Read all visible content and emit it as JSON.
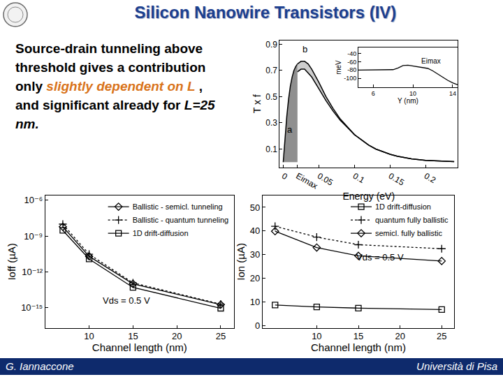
{
  "slide": {
    "title": "Silicon Nanowire Transistors (IV)",
    "body": [
      {
        "text": "Source-drain tunneling above threshold gives a contribution only "
      },
      {
        "text": "slightly dependent on L",
        "style": "emphasis"
      },
      {
        "text": " , and significant already for "
      },
      {
        "text": "L=25 nm.",
        "style": "italic"
      }
    ],
    "footer_left": "G. Iannaccone",
    "footer_right": "Università di Pisa"
  },
  "chart_data": [
    {
      "type": "area",
      "x_label": "Energy (eV)",
      "y_label": "T x f",
      "x": [
        0,
        0.0025,
        0.005,
        0.0075,
        0.01,
        0.0125,
        0.015,
        0.0175,
        0.02,
        0.025,
        0.03,
        0.035,
        0.04,
        0.05,
        0.06,
        0.07,
        0.08,
        0.09,
        0.1,
        0.11,
        0.12,
        0.13,
        0.14,
        0.15,
        0.16,
        0.18,
        0.2,
        0.22,
        0.24
      ],
      "series": [
        {
          "color": "#000000",
          "values": [
            0,
            0.2,
            0.35,
            0.48,
            0.58,
            0.65,
            0.7,
            0.73,
            0.75,
            0.77,
            0.77,
            0.75,
            0.71,
            0.61,
            0.5,
            0.41,
            0.33,
            0.27,
            0.21,
            0.17,
            0.13,
            0.1,
            0.08,
            0.06,
            0.045,
            0.025,
            0.014,
            0.008,
            0.004
          ]
        },
        {
          "color": "#000000",
          "values": [
            null,
            null,
            null,
            null,
            null,
            null,
            null,
            null,
            0.69,
            0.71,
            0.71,
            0.68,
            0.65,
            0.56,
            0.47,
            0.39,
            0.32,
            0.265,
            0.21,
            0.17,
            0.13,
            0.1,
            0.08,
            0.06,
            0.045,
            0.025,
            0.014,
            0.008,
            0.004
          ]
        }
      ],
      "xlim": [
        -0.005,
        0.245
      ],
      "ylim": [
        -0.04,
        0.93
      ],
      "xticks": [
        0,
        {
          "value": 0.02,
          "label": "Eimax"
        },
        0.05,
        0.1,
        0.15,
        0.2
      ],
      "yticks": [
        0.1,
        0.3,
        0.5,
        0.7,
        0.9
      ],
      "grid": false,
      "annotations": [
        "a",
        "b"
      ]
    },
    {
      "type": "line",
      "x_label": "Y (nm)",
      "y_label": "meV",
      "x": [
        4.5,
        6,
        7,
        8,
        8.5,
        9,
        9.5,
        10,
        10.5,
        11,
        11.5,
        12,
        12.5,
        13,
        13.5,
        14,
        14.5
      ],
      "values": [
        -80,
        -80,
        -80,
        -79,
        -75,
        -69,
        -68,
        -70,
        -72,
        -73,
        -76,
        -82,
        -90,
        -98,
        -105,
        -111,
        -116
      ],
      "color": "#000000",
      "xlim": [
        4.5,
        14.5
      ],
      "ylim": [
        -122,
        -25
      ],
      "xticks": [
        6,
        10,
        14
      ],
      "yticks": [
        -40,
        -60,
        -80,
        -100
      ],
      "grid": false,
      "annotations": [
        "Eimax"
      ]
    },
    {
      "type": "line",
      "x_label": "Channel length (nm)",
      "y_label": "Ioff (µA)",
      "x": [
        7,
        10,
        15,
        25
      ],
      "log": "y",
      "series": [
        {
          "name": "1D drift-diffusion",
          "color": "#000000",
          "marker": "square",
          "line_style": "solid",
          "values": [
            3e-09,
            1.2e-11,
            5e-14,
            9e-16
          ]
        },
        {
          "name": "Ballistic - quantum tunneling",
          "color": "#000000",
          "marker": "plus",
          "line_style": "dotted",
          "values": [
            1e-08,
            3e-11,
            1.2e-13,
            2e-15
          ]
        },
        {
          "name": "Ballistic - semicl. tunneling",
          "color": "#000000",
          "marker": "diamond",
          "line_style": "solid",
          "values": [
            6e-09,
            2e-11,
            1e-13,
            1.8e-15
          ]
        }
      ],
      "xlim": [
        5,
        26.5
      ],
      "ylim": [
        2e-17,
        2.5e-06
      ],
      "xticks": [
        10,
        15,
        20,
        25
      ],
      "yticks": [
        {
          "value": 1e-15,
          "label": "10⁻¹⁵"
        },
        {
          "value": 1e-12,
          "label": "10⁻¹²"
        },
        {
          "value": 1e-09,
          "label": "10⁻⁹"
        },
        {
          "value": 1e-06,
          "label": "10⁻⁶"
        }
      ],
      "legend": "upper right",
      "grid": false,
      "annotations": [
        "Vds = 0.5 V"
      ]
    },
    {
      "type": "line",
      "x_label": "Channel length (nm)",
      "y_label": "Ion (µA)",
      "x": [
        5,
        10,
        15,
        25
      ],
      "series": [
        {
          "name": "1D drift-diffusion",
          "color": "#000000",
          "marker": "square",
          "line_style": "solid",
          "values": [
            8.7,
            7.9,
            7.4,
            6.8
          ]
        },
        {
          "name": "quantum fully ballistic",
          "color": "#000000",
          "marker": "plus",
          "line_style": "dotted",
          "values": [
            42,
            37.4,
            34.2,
            32.5
          ]
        },
        {
          "name": "semicl. fully ballistic",
          "color": "#000000",
          "marker": "diamond",
          "line_style": "solid",
          "values": [
            39.9,
            33,
            29.5,
            27.3
          ]
        }
      ],
      "xlim": [
        3.5,
        26.5
      ],
      "ylim": [
        -1,
        55
      ],
      "xticks": [
        10,
        15,
        20,
        25
      ],
      "yticks": [
        0,
        10,
        20,
        30,
        40,
        50
      ],
      "legend": "upper right",
      "grid": false,
      "annotations": [
        "Vds = 0.5 V"
      ]
    }
  ]
}
